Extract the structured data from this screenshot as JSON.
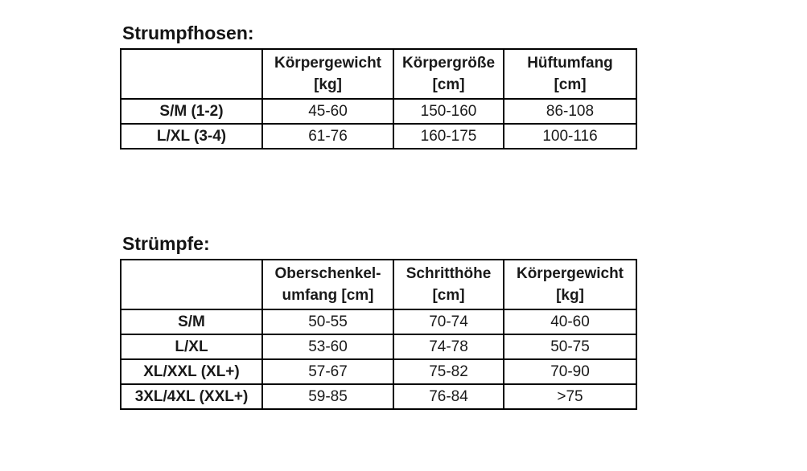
{
  "page": {
    "background": "#ffffff",
    "text_color": "#1a1a1a",
    "border_color": "#000000"
  },
  "tables": [
    {
      "title": "Strumpfhosen:",
      "columns": [
        {
          "line1": "",
          "line2": ""
        },
        {
          "line1": "Körpergewicht",
          "line2": "[kg]"
        },
        {
          "line1": "Körpergröße",
          "line2": "[cm]"
        },
        {
          "line1": "Hüftumfang",
          "line2": "[cm]"
        }
      ],
      "rows": [
        {
          "label": "S/M (1-2)",
          "values": [
            "45-60",
            "150-160",
            "86-108"
          ]
        },
        {
          "label": "L/XL (3-4)",
          "values": [
            "61-76",
            "160-175",
            "100-116"
          ]
        }
      ]
    },
    {
      "title": "Strümpfe:",
      "columns": [
        {
          "line1": "",
          "line2": ""
        },
        {
          "line1": "Oberschenkel-",
          "line2": "umfang [cm]"
        },
        {
          "line1": "Schritthöhe",
          "line2": "[cm]"
        },
        {
          "line1": "Körpergewicht",
          "line2": "[kg]"
        }
      ],
      "rows": [
        {
          "label": "S/M",
          "values": [
            "50-55",
            "70-74",
            "40-60"
          ]
        },
        {
          "label": "L/XL",
          "values": [
            "53-60",
            "74-78",
            "50-75"
          ]
        },
        {
          "label": "XL/XXL (XL+)",
          "values": [
            "57-67",
            "75-82",
            "70-90"
          ]
        },
        {
          "label": "3XL/4XL (XXL+)",
          "values": [
            "59-85",
            "76-84",
            ">75"
          ]
        }
      ]
    }
  ]
}
